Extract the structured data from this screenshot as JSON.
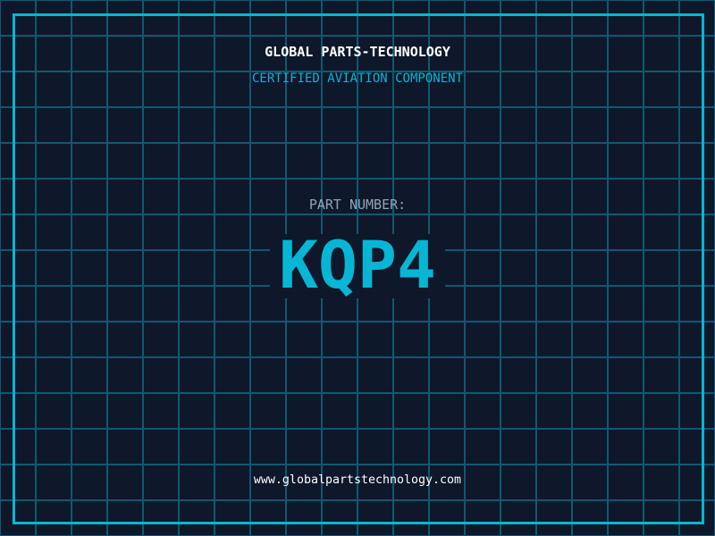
{
  "header": {
    "brand": "GLOBAL PARTS-TECHNOLOGY",
    "subtitle": "CERTIFIED AVIATION COMPONENT"
  },
  "part": {
    "label": "PART NUMBER:",
    "number": "KQP4"
  },
  "footer": {
    "url": "www.globalpartstechnology.com"
  },
  "colors": {
    "background": "#0f172a",
    "accent": "#06b6d4",
    "grid": "#0e5a70",
    "label": "#94a3b8"
  }
}
